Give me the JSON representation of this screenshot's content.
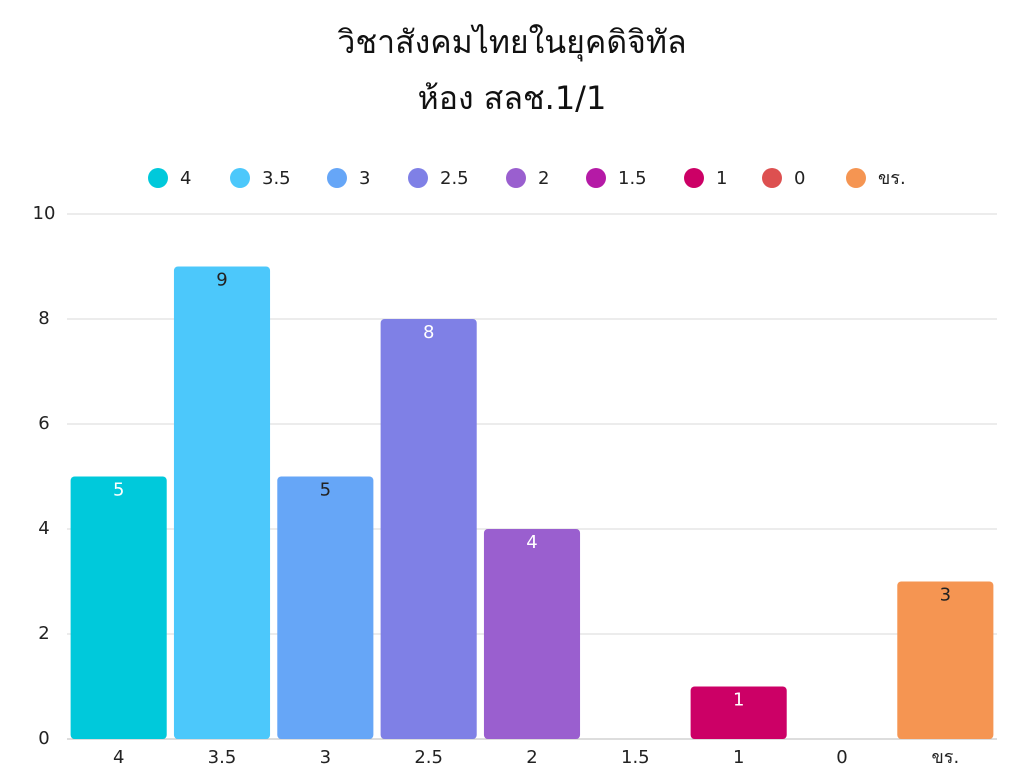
{
  "chart_data": {
    "type": "bar",
    "title": [
      "วิชาสังคมไทยในยุคดิจิทัล",
      "ห้อง สลช.1/1"
    ],
    "categories": [
      "4",
      "3.5",
      "3",
      "2.5",
      "2",
      "1.5",
      "1",
      "0",
      "ขร."
    ],
    "values": [
      5,
      9,
      5,
      8,
      4,
      null,
      1,
      null,
      3
    ],
    "colors": [
      "#00c9db",
      "#4cc8fb",
      "#66a6f7",
      "#7f80e6",
      "#9a5fcf",
      "#b51aa6",
      "#cc0066",
      "#dd5050",
      "#f59552"
    ],
    "ylim": [
      0,
      10
    ],
    "yticks": [
      0,
      2,
      4,
      6,
      8,
      10
    ],
    "grid": true,
    "legend": "top"
  }
}
